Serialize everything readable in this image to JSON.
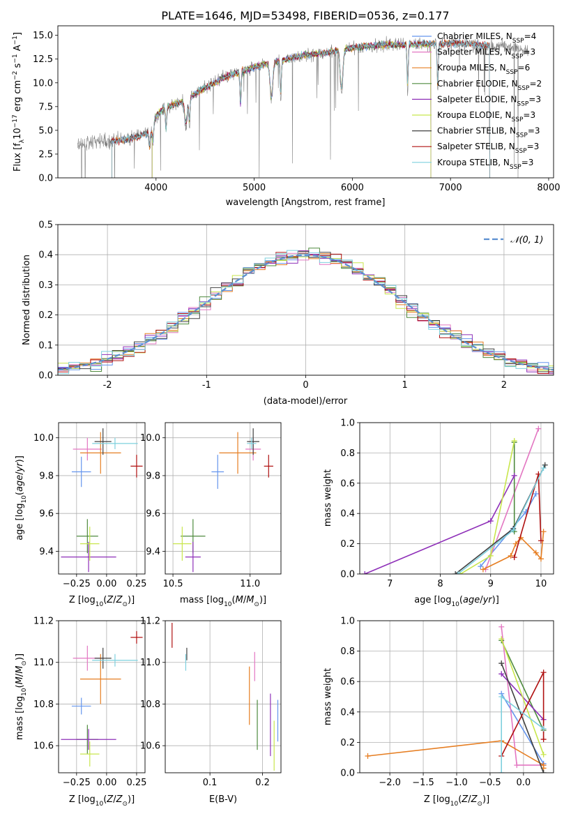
{
  "figure_title": "PLATE=1646, MJD=53498, FIBERID=0536, z=0.177",
  "colors": {
    "Chabrier MILES": "#6495ed",
    "Salpeter MILES": "#e377c2",
    "Kroupa MILES": "#e67e22",
    "Chabrier ELODIE": "#4e8a3e",
    "Salpeter ELODIE": "#8e2fb8",
    "Kroupa ELODIE": "#c8e64c",
    "Chabrier STELIB": "#404040",
    "Salpeter STELIB": "#b01010",
    "Kroupa STELIB": "#7ed0de",
    "data": "#7f7f7f",
    "gauss": "#5b8fd0"
  },
  "chart_data": [
    {
      "id": "spectrum",
      "type": "line",
      "title": "PLATE=1646, MJD=53498, FIBERID=0536, z=0.177",
      "xlabel": "wavelength [Angstrom, rest frame]",
      "ylabel": "Flux [f_λ 10^-17 erg cm^-2 s^-1 A^-1]",
      "xlim": [
        3000,
        8050
      ],
      "ylim": [
        0,
        16
      ],
      "xticks": [
        4000,
        5000,
        6000,
        7000,
        8000
      ],
      "yticks": [
        0.0,
        2.5,
        5.0,
        7.5,
        10.0,
        12.5,
        15.0
      ],
      "legend_position": "top-right",
      "legend": [
        {
          "label": "Chabrier MILES, N",
          "sub": "SSP",
          "suffix": "=4"
        },
        {
          "label": "Salpeter MILES, N",
          "sub": "SSP",
          "suffix": "=3"
        },
        {
          "label": "Kroupa MILES, N",
          "sub": "SSP",
          "suffix": "=6"
        },
        {
          "label": "Chabrier ELODIE, N",
          "sub": "SSP",
          "suffix": "=2"
        },
        {
          "label": "Salpeter ELODIE, N",
          "sub": "SSP",
          "suffix": "=3"
        },
        {
          "label": "Kroupa ELODIE, N",
          "sub": "SSP",
          "suffix": "=3"
        },
        {
          "label": "Chabrier STELIB, N",
          "sub": "SSP",
          "suffix": "=3"
        },
        {
          "label": "Salpeter STELIB, N",
          "sub": "SSP",
          "suffix": "=3"
        },
        {
          "label": "Kroupa STELIB, N",
          "sub": "SSP",
          "suffix": "=3"
        }
      ],
      "continuum": {
        "x": [
          3200,
          3400,
          3600,
          3800,
          3950,
          4000,
          4100,
          4300,
          4500,
          4700,
          4900,
          5100,
          5300,
          5500,
          5700,
          5900,
          6100,
          6300,
          6500,
          6700,
          6900,
          7100,
          7300,
          7500,
          7700,
          7800
        ],
        "y": [
          3.3,
          3.8,
          3.9,
          4.3,
          4.8,
          6.5,
          7.4,
          8.2,
          9.5,
          10.6,
          11.3,
          12.0,
          12.4,
          12.9,
          13.1,
          13.5,
          13.8,
          14.0,
          14.0,
          14.1,
          14.1,
          14.2,
          14.0,
          13.9,
          13.6,
          13.4
        ]
      },
      "model_cutoffs": {
        "low": [
          3550,
          3960,
          3550,
          3960,
          3960,
          3960,
          3550,
          3550,
          3550
        ],
        "high": [
          7400,
          6800,
          7400,
          6800,
          6800,
          6800,
          7400,
          7400,
          7400
        ]
      }
    },
    {
      "id": "residuals",
      "type": "histogram",
      "xlabel": "(data-model)/error",
      "ylabel": "Normed distribution",
      "xlim": [
        -2.5,
        2.5
      ],
      "ylim": [
        0,
        0.5
      ],
      "xticks": [
        -2,
        -1,
        0,
        1,
        2
      ],
      "yticks": [
        0.0,
        0.1,
        0.2,
        0.3,
        0.4,
        0.5
      ],
      "grid": true,
      "legend_position": "top-right",
      "legend": [
        {
          "label": "𝒩(0, 1)"
        }
      ]
    },
    {
      "id": "age_vs_Z",
      "type": "errorbar",
      "xlabel": "Z [log10(Z/Z⊙)]",
      "ylabel": "age [log10(age/yr)]",
      "xlim": [
        -0.4,
        0.32
      ],
      "ylim": [
        9.28,
        10.08
      ],
      "xticks": [
        -0.25,
        0.0,
        0.25
      ],
      "xticklabels": [
        "−0.25",
        "0.00",
        "0.25"
      ],
      "yticks": [
        9.4,
        9.6,
        9.8,
        10.0
      ],
      "grid": true,
      "points": [
        {
          "series": "Chabrier MILES",
          "x": -0.21,
          "xerr": 0.08,
          "y": 9.82,
          "yerr": 0.08
        },
        {
          "series": "Salpeter MILES",
          "x": -0.16,
          "xerr": 0.12,
          "y": 9.94,
          "yerr": 0.06
        },
        {
          "series": "Kroupa MILES",
          "x": -0.05,
          "xerr": 0.17,
          "y": 9.92,
          "yerr": 0.11
        },
        {
          "series": "Chabrier ELODIE",
          "x": -0.16,
          "xerr": 0.09,
          "y": 9.48,
          "yerr": 0.09
        },
        {
          "series": "Salpeter ELODIE",
          "x": -0.15,
          "xerr": 0.23,
          "y": 9.37,
          "yerr": 0.08
        },
        {
          "series": "Kroupa ELODIE",
          "x": -0.14,
          "xerr": 0.08,
          "y": 9.44,
          "yerr": 0.09
        },
        {
          "series": "Chabrier STELIB",
          "x": -0.03,
          "xerr": 0.07,
          "y": 9.98,
          "yerr": 0.07
        },
        {
          "series": "Salpeter STELIB",
          "x": 0.25,
          "xerr": 0.05,
          "y": 9.85,
          "yerr": 0.06
        },
        {
          "series": "Kroupa STELIB",
          "x": 0.07,
          "xerr": 0.19,
          "y": 9.97,
          "yerr": 0.03
        }
      ]
    },
    {
      "id": "age_vs_mass",
      "type": "errorbar",
      "xlabel": "mass [log10(M/M⊙)]",
      "xlim": [
        10.45,
        11.2
      ],
      "ylim": [
        9.28,
        10.08
      ],
      "xticks": [
        10.5,
        11.0
      ],
      "xticklabels": [
        "10.5",
        "11.0"
      ],
      "yticks": [
        9.4,
        9.6,
        9.8,
        10.0
      ],
      "grid": true,
      "points": [
        {
          "series": "Chabrier MILES",
          "x": 10.79,
          "xerr": 0.04,
          "y": 9.82,
          "yerr": 0.09
        },
        {
          "series": "Salpeter MILES",
          "x": 11.02,
          "xerr": 0.05,
          "y": 9.94,
          "yerr": 0.06
        },
        {
          "series": "Kroupa MILES",
          "x": 10.92,
          "xerr": 0.12,
          "y": 9.92,
          "yerr": 0.11
        },
        {
          "series": "Chabrier ELODIE",
          "x": 10.63,
          "xerr": 0.08,
          "y": 9.48,
          "yerr": 0.09
        },
        {
          "series": "Salpeter ELODIE",
          "x": 10.63,
          "xerr": 0.05,
          "y": 9.37,
          "yerr": 0.08
        },
        {
          "series": "Kroupa ELODIE",
          "x": 10.56,
          "xerr": 0.06,
          "y": 9.44,
          "yerr": 0.09
        },
        {
          "series": "Chabrier STELIB",
          "x": 11.02,
          "xerr": 0.04,
          "y": 9.98,
          "yerr": 0.07
        },
        {
          "series": "Salpeter STELIB",
          "x": 11.12,
          "xerr": 0.03,
          "y": 9.85,
          "yerr": 0.06
        },
        {
          "series": "Kroupa STELIB",
          "x": 11.01,
          "xerr": 0.03,
          "y": 9.97,
          "yerr": 0.03
        }
      ]
    },
    {
      "id": "weight_vs_age",
      "type": "line",
      "xlabel": "age [log10(age/yr)]",
      "ylabel": "mass weight",
      "xlim": [
        6.4,
        10.25
      ],
      "ylim": [
        0,
        1.0
      ],
      "xticks": [
        7,
        8,
        9,
        10
      ],
      "yticks": [
        0.0,
        0.2,
        0.4,
        0.6,
        0.8,
        1.0
      ],
      "grid": true,
      "series": [
        {
          "name": "Chabrier MILES",
          "x": [
            8.8,
            9.7,
            9.9
          ],
          "y": [
            0.05,
            0.41,
            0.53
          ]
        },
        {
          "name": "Salpeter MILES",
          "x": [
            8.9,
            9.95
          ],
          "y": [
            0.03,
            0.96
          ]
        },
        {
          "name": "Kroupa MILES",
          "x": [
            8.85,
            9.4,
            9.5,
            9.6,
            9.9,
            10.0,
            10.05
          ],
          "y": [
            0.03,
            0.12,
            0.2,
            0.24,
            0.14,
            0.1,
            0.28
          ]
        },
        {
          "name": "Chabrier ELODIE",
          "x": [
            9.47,
            9.47
          ],
          "y": [
            0.28,
            0.87
          ]
        },
        {
          "name": "Salpeter ELODIE",
          "x": [
            6.5,
            9.0,
            9.47
          ],
          "y": [
            0.0,
            0.35,
            0.65
          ]
        },
        {
          "name": "Kroupa ELODIE",
          "x": [
            8.4,
            9.0,
            9.47
          ],
          "y": [
            0.0,
            0.12,
            0.88
          ]
        },
        {
          "name": "Chabrier STELIB",
          "x": [
            8.3,
            9.45,
            10.08
          ],
          "y": [
            0.0,
            0.3,
            0.72
          ]
        },
        {
          "name": "Salpeter STELIB",
          "x": [
            9.47,
            9.95,
            10.0
          ],
          "y": [
            0.11,
            0.66,
            0.22
          ]
        },
        {
          "name": "Kroupa STELIB",
          "x": [
            8.35,
            9.45,
            10.05
          ],
          "y": [
            0.0,
            0.29,
            0.7
          ]
        }
      ]
    },
    {
      "id": "mass_vs_Z",
      "type": "errorbar",
      "xlabel": "Z [log10(Z/Z⊙)]",
      "ylabel": "mass [log10(M/M⊙)]",
      "xlim": [
        -0.4,
        0.32
      ],
      "ylim": [
        10.47,
        11.2
      ],
      "xticks": [
        -0.25,
        0.0,
        0.25
      ],
      "xticklabels": [
        "−0.25",
        "0.00",
        "0.25"
      ],
      "yticks": [
        10.6,
        10.8,
        11.0,
        11.2
      ],
      "grid": true,
      "points": [
        {
          "series": "Chabrier MILES",
          "x": -0.21,
          "xerr": 0.08,
          "y": 10.79,
          "yerr": 0.04
        },
        {
          "series": "Salpeter MILES",
          "x": -0.16,
          "xerr": 0.12,
          "y": 11.02,
          "yerr": 0.06
        },
        {
          "series": "Kroupa MILES",
          "x": -0.05,
          "xerr": 0.17,
          "y": 10.92,
          "yerr": 0.12
        },
        {
          "series": "Chabrier ELODIE",
          "x": -0.16,
          "xerr": 0.09,
          "y": 10.63,
          "yerr": 0.07
        },
        {
          "series": "Salpeter ELODIE",
          "x": -0.15,
          "xerr": 0.23,
          "y": 10.63,
          "yerr": 0.05
        },
        {
          "series": "Kroupa ELODIE",
          "x": -0.14,
          "xerr": 0.08,
          "y": 10.56,
          "yerr": 0.06
        },
        {
          "series": "Chabrier STELIB",
          "x": -0.03,
          "xerr": 0.07,
          "y": 11.02,
          "yerr": 0.05
        },
        {
          "series": "Salpeter STELIB",
          "x": 0.25,
          "xerr": 0.05,
          "y": 11.12,
          "yerr": 0.03
        },
        {
          "series": "Kroupa STELIB",
          "x": 0.07,
          "xerr": 0.19,
          "y": 11.01,
          "yerr": 0.03
        }
      ]
    },
    {
      "id": "mass_vs_ebv",
      "type": "errorbar",
      "xlabel": "E(B-V)",
      "xlim": [
        0.015,
        0.235
      ],
      "ylim": [
        10.47,
        11.2
      ],
      "xticks": [
        0.1,
        0.2
      ],
      "xticklabels": [
        "0.1",
        "0.2"
      ],
      "yticks": [
        10.6,
        10.8,
        11.0,
        11.2
      ],
      "grid": true,
      "points": [
        {
          "series": "Chabrier MILES",
          "x": 0.229,
          "y": 10.72,
          "yerr": 0.1
        },
        {
          "series": "Salpeter MILES",
          "x": 0.185,
          "y": 10.98,
          "yerr": 0.07
        },
        {
          "series": "Kroupa MILES",
          "x": 0.175,
          "y": 10.84,
          "yerr": 0.14
        },
        {
          "series": "Chabrier ELODIE",
          "x": 0.19,
          "y": 10.7,
          "yerr": 0.12
        },
        {
          "series": "Salpeter ELODIE",
          "x": 0.215,
          "y": 10.7,
          "yerr": 0.15
        },
        {
          "series": "Kroupa ELODIE",
          "x": 0.222,
          "y": 10.6,
          "yerr": 0.12
        },
        {
          "series": "Chabrier STELIB",
          "x": 0.056,
          "y": 11.04,
          "yerr": 0.03
        },
        {
          "series": "Salpeter STELIB",
          "x": 0.028,
          "y": 11.13,
          "yerr": 0.06
        },
        {
          "series": "Kroupa STELIB",
          "x": 0.054,
          "y": 11.0,
          "yerr": 0.04
        }
      ]
    },
    {
      "id": "weight_vs_Z",
      "type": "line",
      "xlabel": "Z [log10(Z/Z⊙)]",
      "ylabel": "mass weight",
      "xlim": [
        -2.45,
        0.45
      ],
      "ylim": [
        0,
        1.0
      ],
      "xticks": [
        -2.0,
        -1.5,
        -1.0,
        -0.5,
        0.0
      ],
      "xticklabels": [
        "−2.0",
        "−1.5",
        "−1.0",
        "−0.5",
        "0.0"
      ],
      "yticks": [
        0.0,
        0.2,
        0.4,
        0.6,
        0.8,
        1.0
      ],
      "grid": true,
      "series": [
        {
          "name": "Chabrier MILES",
          "x": [
            -0.33,
            0.3
          ],
          "y": [
            0.52,
            0.06
          ]
        },
        {
          "name": "Salpeter MILES",
          "x": [
            -0.33,
            -0.1,
            0.3
          ],
          "y": [
            0.96,
            0.05,
            0.05
          ]
        },
        {
          "name": "Kroupa MILES",
          "x": [
            -2.33,
            -0.33,
            0.3,
            0.3
          ],
          "y": [
            0.11,
            0.21,
            0.05,
            0.03
          ]
        },
        {
          "name": "Chabrier ELODIE",
          "x": [
            -0.33,
            0.3
          ],
          "y": [
            0.87,
            0.28
          ]
        },
        {
          "name": "Salpeter ELODIE",
          "x": [
            -0.33,
            0.3
          ],
          "y": [
            0.65,
            0.35
          ]
        },
        {
          "name": "Kroupa ELODIE",
          "x": [
            -0.33,
            0.3
          ],
          "y": [
            0.88,
            0.12
          ]
        },
        {
          "name": "Chabrier STELIB",
          "x": [
            -0.33,
            0.3
          ],
          "y": [
            0.72,
            0.0
          ]
        },
        {
          "name": "Salpeter STELIB",
          "x": [
            -0.33,
            0.3,
            0.3
          ],
          "y": [
            0.11,
            0.66,
            0.22
          ]
        },
        {
          "name": "Kroupa STELIB",
          "x": [
            -0.33,
            -0.33,
            0.3
          ],
          "y": [
            0.0,
            0.5,
            0.29
          ]
        }
      ]
    }
  ]
}
